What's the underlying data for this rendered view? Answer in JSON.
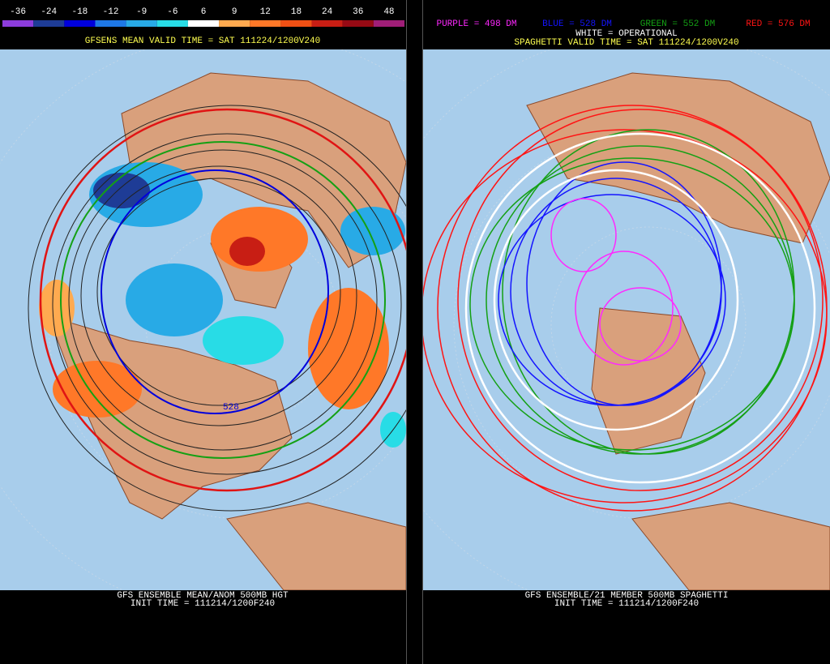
{
  "left_panel": {
    "colorbar": [
      {
        "label": "-36",
        "color": "#8c3cdc"
      },
      {
        "label": "-24",
        "color": "#1e3c96"
      },
      {
        "label": "-18",
        "color": "#0000dc"
      },
      {
        "label": "-12",
        "color": "#1e78e6"
      },
      {
        "label": "-9",
        "color": "#28aae6"
      },
      {
        "label": "-6",
        "color": "#28dce6"
      },
      {
        "label": "6",
        "color": "#ffffff"
      },
      {
        "label": "9",
        "color": "#ffaa50"
      },
      {
        "label": "12",
        "color": "#ff7828"
      },
      {
        "label": "18",
        "color": "#f05014"
      },
      {
        "label": "24",
        "color": "#c81e14"
      },
      {
        "label": "36",
        "color": "#960a14"
      },
      {
        "label": "48",
        "color": "#a01e78"
      }
    ],
    "valid_time": "GFSENS MEAN VALID TIME = SAT 111224/1200V240",
    "contour_label": "528",
    "footer": [
      "GFS ENSEMBLE MEAN/ANOM 500MB HGT",
      "INIT TIME = 111214/1200F240"
    ]
  },
  "right_panel": {
    "legend": [
      {
        "label": "PURPLE = 498 DM",
        "color": "#ff28ff"
      },
      {
        "label": "BLUE = 528 DM",
        "color": "#1414ff"
      },
      {
        "label": "GREEN = 552 DM",
        "color": "#14a014"
      },
      {
        "label": "RED = 576 DM",
        "color": "#ff1414"
      }
    ],
    "operational": "WHITE = OPERATIONAL",
    "valid_time": "SPAGHETTI VALID TIME = SAT 111224/1200V240",
    "footer": [
      "GFS ENSEMBLE/21 MEMBER 500MB SPAGHETTI",
      "INIT TIME = 111214/1200F240"
    ]
  }
}
